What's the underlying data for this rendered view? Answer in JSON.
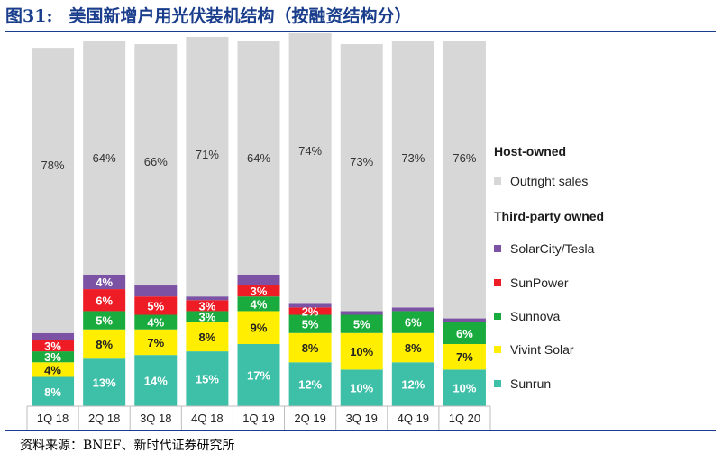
{
  "figure": {
    "number": "图31:",
    "title": "美国新增户用光伏装机结构（按融资结构分）",
    "source": "资料来源：BNEF、新时代证券研究所"
  },
  "chart_data": {
    "type": "bar",
    "stacked": true,
    "title": "美国新增户用光伏装机结构（按融资结构分）",
    "xlabel": "",
    "ylabel": "",
    "ylim": [
      0,
      100
    ],
    "categories": [
      "1Q 18",
      "2Q 18",
      "3Q 18",
      "4Q 18",
      "1Q 19",
      "2Q 19",
      "3Q 19",
      "4Q 19",
      "1Q 20"
    ],
    "series": [
      {
        "name": "Sunrun",
        "color": "#3dbfa8",
        "values": [
          8,
          13,
          14,
          15,
          17,
          12,
          10,
          12,
          10
        ],
        "labels": [
          "8%",
          "13%",
          "14%",
          "15%",
          "17%",
          "12%",
          "10%",
          "12%",
          "10%"
        ],
        "label_color": "#ffffff"
      },
      {
        "name": "Vivint Solar",
        "color": "#ffee00",
        "values": [
          4,
          8,
          7,
          8,
          9,
          8,
          10,
          8,
          7
        ],
        "labels": [
          "4%",
          "8%",
          "7%",
          "8%",
          "9%",
          "8%",
          "10%",
          "8%",
          "7%"
        ],
        "label_color": "#222222"
      },
      {
        "name": "Sunnova",
        "color": "#1aab3e",
        "values": [
          3,
          5,
          4,
          3,
          4,
          5,
          5,
          6,
          6
        ],
        "labels": [
          "3%",
          "5%",
          "4%",
          "3%",
          "4%",
          "5%",
          "5%",
          "6%",
          "6%"
        ],
        "label_color": "#ffffff"
      },
      {
        "name": "SunPower",
        "color": "#ee1c25",
        "values": [
          3,
          6,
          5,
          3,
          3,
          2,
          0,
          0,
          0
        ],
        "labels": [
          "3%",
          "6%",
          "5%",
          "3%",
          "3%",
          "2%",
          "",
          "",
          ""
        ],
        "label_color": "#ffffff"
      },
      {
        "name": "SolarCity/Tesla",
        "color": "#7b52a4",
        "values": [
          2,
          4,
          3,
          1,
          3,
          1,
          1,
          1,
          1
        ],
        "labels": [
          "",
          "4%",
          "",
          "",
          "",
          "",
          "",
          "",
          ""
        ],
        "label_color": "#ffffff"
      },
      {
        "name": "Outright sales",
        "color": "#d7d7d7",
        "values": [
          78,
          64,
          66,
          71,
          64,
          74,
          73,
          73,
          76
        ],
        "labels": [
          "78%",
          "64%",
          "66%",
          "71%",
          "64%",
          "74%",
          "73%",
          "73%",
          "76%"
        ],
        "label_color": "#333333"
      }
    ],
    "legend": {
      "position": "right",
      "groups": [
        {
          "heading": "Host-owned",
          "items": [
            "Outright sales"
          ]
        },
        {
          "heading": "Third-party owned",
          "items": [
            "SolarCity/Tesla",
            "SunPower",
            "Sunnova",
            "Vivint Solar",
            "Sunrun"
          ]
        }
      ]
    }
  }
}
